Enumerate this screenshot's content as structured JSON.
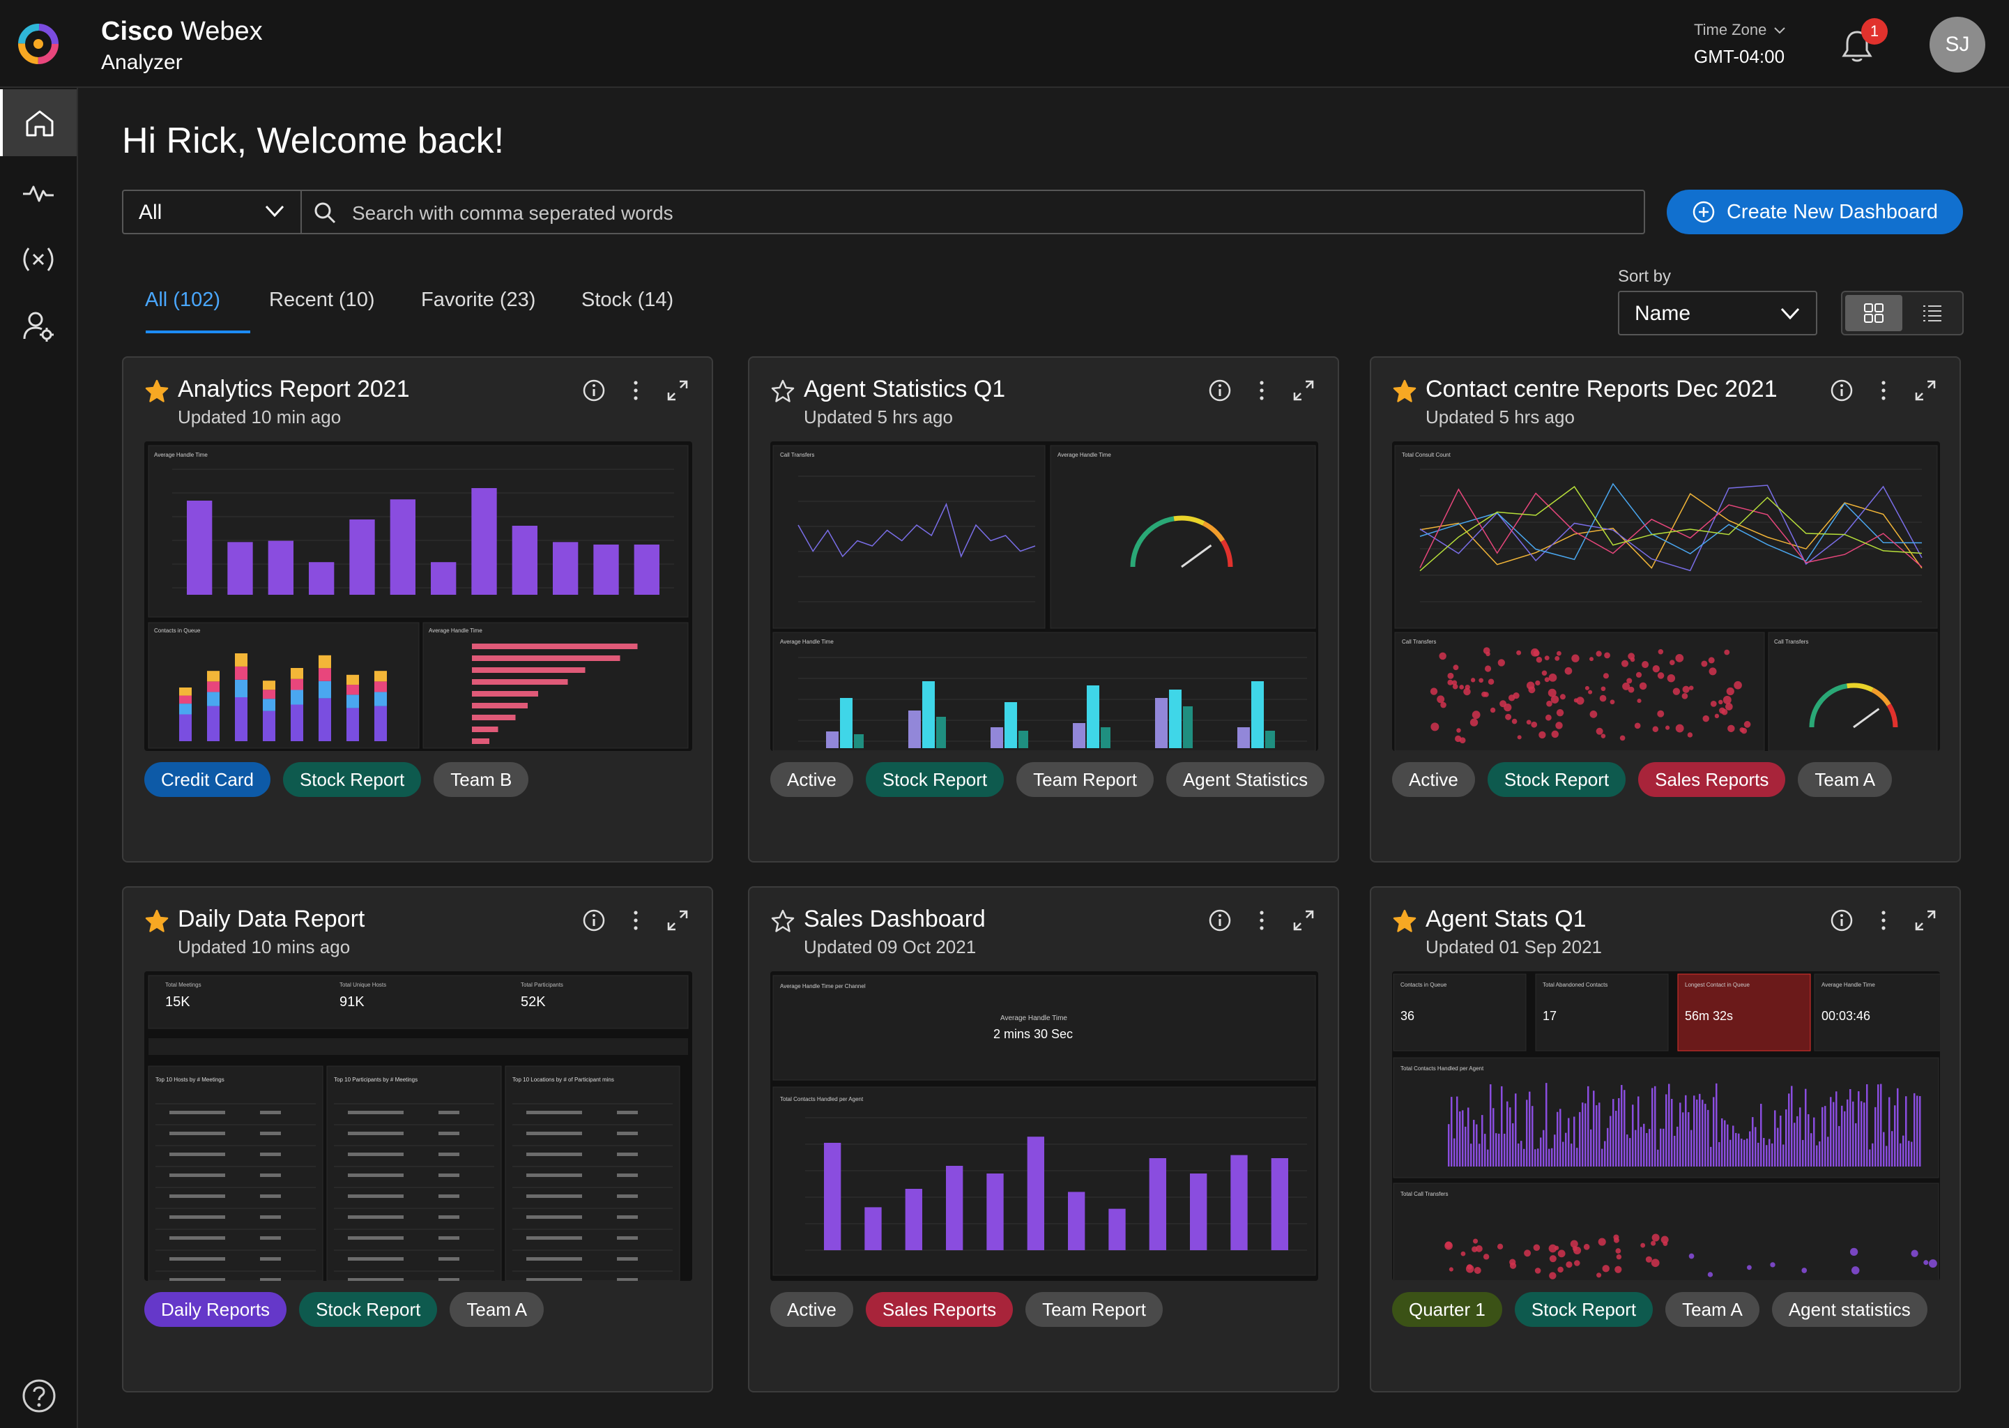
{
  "brand": {
    "name_bold": "Cisco",
    "name_light": "Webex",
    "product": "Analyzer"
  },
  "timezone": {
    "label": "Time Zone",
    "value": "GMT-04:00"
  },
  "notifications": {
    "count": "1"
  },
  "user": {
    "initials": "SJ"
  },
  "greeting": "Hi Rick, Welcome back!",
  "filter": {
    "selected": "All",
    "search_placeholder": "Search with comma seperated words"
  },
  "create_button": "Create New Dashboard",
  "tabs": [
    {
      "label": "All (102)",
      "active": true
    },
    {
      "label": "Recent (10)"
    },
    {
      "label": "Favorite (23)"
    },
    {
      "label": "Stock (14)"
    }
  ],
  "sort": {
    "label": "Sort by",
    "value": "Name"
  },
  "colors": {
    "accent": "#1170cf",
    "star": "#f7a823",
    "tag_blue": "#0d5aa7",
    "tag_teal": "#0e5a4e",
    "tag_gray": "#4a4a4a",
    "tag_red": "#a8243a",
    "tag_purple": "#6538c9",
    "tag_olive": "#3b5216"
  },
  "cards": [
    {
      "title": "Analytics Report 2021",
      "updated": "Updated 10 min ago",
      "favorite": true,
      "tags": [
        {
          "label": "Credit Card",
          "color": "blue"
        },
        {
          "label": "Stock Report",
          "color": "teal"
        },
        {
          "label": "Team B",
          "color": "gray"
        }
      ]
    },
    {
      "title": "Agent Statistics Q1",
      "updated": "Updated 5 hrs ago",
      "favorite": false,
      "tags": [
        {
          "label": "Active",
          "color": "gray"
        },
        {
          "label": "Stock Report",
          "color": "teal"
        },
        {
          "label": "Team Report",
          "color": "gray"
        },
        {
          "label": "Agent Statistics",
          "color": "gray"
        }
      ]
    },
    {
      "title": "Contact centre Reports Dec 2021",
      "updated": "Updated 5 hrs ago",
      "favorite": true,
      "tags": [
        {
          "label": "Active",
          "color": "gray"
        },
        {
          "label": "Stock Report",
          "color": "teal"
        },
        {
          "label": "Sales Reports",
          "color": "red"
        },
        {
          "label": "Team A",
          "color": "gray"
        }
      ]
    },
    {
      "title": "Daily Data Report",
      "updated": "Updated 10 mins ago",
      "favorite": true,
      "tags": [
        {
          "label": "Daily Reports",
          "color": "purple"
        },
        {
          "label": "Stock Report",
          "color": "teal"
        },
        {
          "label": "Team A",
          "color": "gray"
        }
      ]
    },
    {
      "title": "Sales Dashboard",
      "updated": "Updated  09 Oct 2021",
      "favorite": false,
      "tags": [
        {
          "label": "Active",
          "color": "gray"
        },
        {
          "label": "Sales Reports",
          "color": "red"
        },
        {
          "label": "Team Report",
          "color": "gray"
        }
      ]
    },
    {
      "title": "Agent Stats Q1",
      "updated": "Updated 01 Sep 2021",
      "favorite": true,
      "tags": [
        {
          "label": "Quarter 1",
          "color": "olive"
        },
        {
          "label": "Stock Report",
          "color": "teal"
        },
        {
          "label": "Team A",
          "color": "gray"
        },
        {
          "label": "Agent statistics",
          "color": "gray"
        }
      ]
    }
  ],
  "previews": {
    "p1": {
      "chart1_title": "Average Handle Time",
      "chart2_title": "Contacts in Queue",
      "chart3_title": "Average Handle Time"
    },
    "p2": {
      "chart1_title": "Call Transfers",
      "chart2_title": "Average Handle Time",
      "chart3_title": "Average Handle Time"
    },
    "p3": {
      "chart1_title": "Total Consult Count",
      "chart2_title": "Call Transfers",
      "chart3_title": "Call Transfers"
    },
    "p4": {
      "kpi1_label": "Total Meetings",
      "kpi1_value": "15K",
      "kpi2_label": "Total Unique Hosts",
      "kpi2_value": "91K",
      "kpi3_label": "Total Participants",
      "kpi3_value": "52K",
      "t1": "Top 10 Hosts by # Meetings",
      "t2": "Top 10 Participants by # Meetings",
      "t3": "Top 10 Locations by # of Participant mins"
    },
    "p5": {
      "chart1_title": "Average Handle Time per Channel",
      "kpi_label": "Average Handle Time",
      "kpi_value": "2 mins 30 Sec",
      "chart2_title": "Total Contacts Handled per Agent"
    },
    "p6": {
      "k1_label": "Contacts in Queue",
      "k1_value": "36",
      "k2_label": "Total Abandoned Contacts",
      "k2_value": "17",
      "k3_label": "Longest Contact in Queue",
      "k3_value": "56m 32s",
      "k4_label": "Average Handle Time",
      "k4_value": "00:03:46",
      "chart1_title": "Total Contacts Handled per Agent",
      "chart2_title": "Total Call Transfers"
    }
  }
}
